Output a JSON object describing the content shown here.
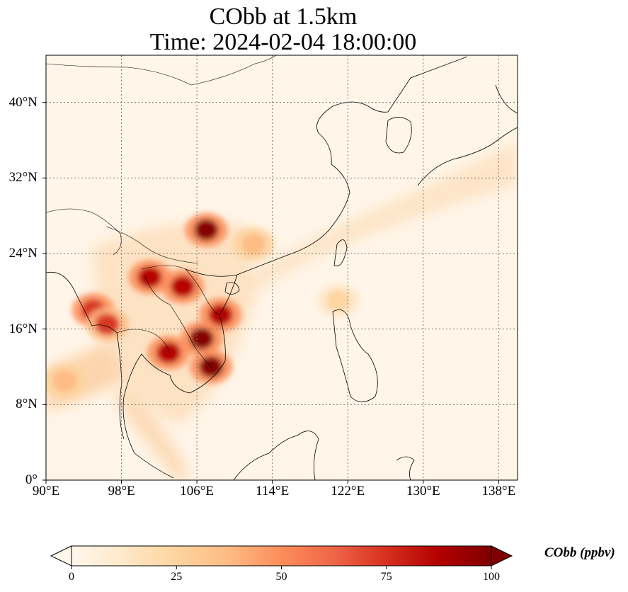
{
  "title": {
    "line1": "CObb at 1.5km",
    "line2": "Time: 2024-02-04 18:00:00"
  },
  "map": {
    "projection": "PlateCarree",
    "lon_range": [
      90,
      140
    ],
    "lat_range": [
      0,
      45
    ],
    "gridline_style": "dotted",
    "lat_ticks": [
      "0°",
      "8°N",
      "16°N",
      "24°N",
      "32°N",
      "40°N"
    ],
    "lon_ticks": [
      "90°E",
      "98°E",
      "106°E",
      "114°E",
      "122°E",
      "130°E",
      "138°E"
    ],
    "variable": "CObb",
    "colormap": "OrRd",
    "plumes": [
      {
        "lon": 106.5,
        "lat": 15.0,
        "value": 100
      },
      {
        "lon": 107.5,
        "lat": 12.0,
        "value": 100
      },
      {
        "lon": 107.0,
        "lat": 26.5,
        "value": 95
      },
      {
        "lon": 103.0,
        "lat": 13.5,
        "value": 90
      },
      {
        "lon": 101.0,
        "lat": 21.5,
        "value": 85
      },
      {
        "lon": 104.5,
        "lat": 20.5,
        "value": 85
      },
      {
        "lon": 95.0,
        "lat": 18.0,
        "value": 80
      },
      {
        "lon": 96.5,
        "lat": 16.5,
        "value": 75
      },
      {
        "lon": 108.5,
        "lat": 17.5,
        "value": 85
      },
      {
        "lon": 112.0,
        "lat": 25.0,
        "value": 35
      },
      {
        "lon": 92.0,
        "lat": 10.5,
        "value": 35
      },
      {
        "lon": 121.0,
        "lat": 19.0,
        "value": 30
      }
    ]
  },
  "colorbar": {
    "label": "CObb (ppbv)",
    "min": 0,
    "max": 100,
    "extend": "both",
    "ticks": [
      "0",
      "25",
      "50",
      "75",
      "100"
    ],
    "colors": [
      "#fff7ec",
      "#fee8c8",
      "#fdd49e",
      "#fdbb84",
      "#fc8d59",
      "#ef6548",
      "#d7301f",
      "#b30000",
      "#7f0000"
    ]
  }
}
